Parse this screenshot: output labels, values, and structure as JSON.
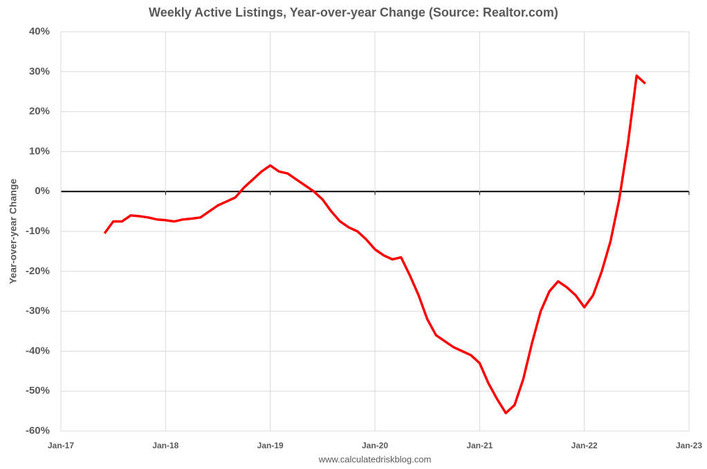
{
  "chart_data": {
    "type": "line",
    "title": "Weekly Active Listings, Year-over-year Change (Source: Realtor.com)",
    "y_label": "Year-over-year Change",
    "source": "www.calculatedriskblog.com",
    "x": [
      "2017-06",
      "2017-07",
      "2017-08",
      "2017-09",
      "2017-10",
      "2017-11",
      "2017-12",
      "2018-01",
      "2018-02",
      "2018-03",
      "2018-04",
      "2018-05",
      "2018-06",
      "2018-07",
      "2018-08",
      "2018-09",
      "2018-10",
      "2018-11",
      "2018-12",
      "2019-01",
      "2019-02",
      "2019-03",
      "2019-04",
      "2019-05",
      "2019-06",
      "2019-07",
      "2019-08",
      "2019-09",
      "2019-10",
      "2019-11",
      "2019-12",
      "2020-01",
      "2020-02",
      "2020-03",
      "2020-04",
      "2020-05",
      "2020-06",
      "2020-07",
      "2020-08",
      "2020-09",
      "2020-10",
      "2020-11",
      "2020-12",
      "2021-01",
      "2021-02",
      "2021-03",
      "2021-04",
      "2021-05",
      "2021-06",
      "2021-07",
      "2021-08",
      "2021-09",
      "2021-10",
      "2021-11",
      "2021-12",
      "2022-01",
      "2022-02",
      "2022-03",
      "2022-04",
      "2022-05",
      "2022-06",
      "2022-07",
      "2022-08"
    ],
    "series": [
      {
        "name": "Weekly Active Listings YoY",
        "color": "#ff0000",
        "values": [
          -10.5,
          -7.5,
          -7.5,
          -6,
          -6.2,
          -6.5,
          -7,
          -7.2,
          -7.5,
          -7,
          -6.8,
          -6.5,
          -5,
          -3.5,
          -2.5,
          -1.5,
          1,
          3,
          5,
          6.5,
          5,
          4.5,
          3,
          1.5,
          0,
          -2,
          -5,
          -7.5,
          -9,
          -10,
          -12,
          -14.5,
          -16,
          -17,
          -16.5,
          -21,
          -26,
          -32,
          -36,
          -37.5,
          -39,
          -40,
          -41,
          -43,
          -48,
          -52,
          -55.5,
          -53.5,
          -47,
          -38,
          -30,
          -25,
          -22.5,
          -24,
          -26,
          -29,
          -26,
          -20,
          -12.5,
          -2,
          12,
          29,
          27
        ]
      }
    ],
    "xlim": [
      "2017-01",
      "2023-01"
    ],
    "xticks": [
      {
        "value": "2017-01",
        "label": "Jan-17"
      },
      {
        "value": "2018-01",
        "label": "Jan-18"
      },
      {
        "value": "2019-01",
        "label": "Jan-19"
      },
      {
        "value": "2020-01",
        "label": "Jan-20"
      },
      {
        "value": "2021-01",
        "label": "Jan-21"
      },
      {
        "value": "2022-01",
        "label": "Jan-22"
      },
      {
        "value": "2023-01",
        "label": "Jan-23"
      }
    ],
    "ylim": [
      -60,
      40
    ],
    "yticks": [
      {
        "value": -60,
        "label": "-60%"
      },
      {
        "value": -50,
        "label": "-50%"
      },
      {
        "value": -40,
        "label": "-40%"
      },
      {
        "value": -30,
        "label": "-30%"
      },
      {
        "value": -20,
        "label": "-20%"
      },
      {
        "value": -10,
        "label": "-10%"
      },
      {
        "value": 0,
        "label": "0%"
      },
      {
        "value": 10,
        "label": "10%"
      },
      {
        "value": 20,
        "label": "20%"
      },
      {
        "value": 30,
        "label": "30%"
      },
      {
        "value": 40,
        "label": "40%"
      }
    ],
    "grid": true
  }
}
